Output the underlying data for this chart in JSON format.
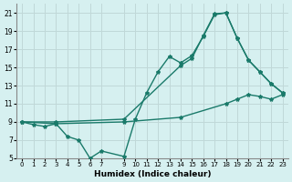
{
  "xlabel": "Humidex (Indice chaleur)",
  "bg_color": "#d6f0f0",
  "grid_color": "#c0d8d8",
  "line_color": "#1a7a6a",
  "xlim": [
    -0.5,
    23.5
  ],
  "ylim": [
    5,
    22
  ],
  "xticks": [
    0,
    1,
    2,
    3,
    4,
    5,
    6,
    7,
    9,
    10,
    11,
    12,
    13,
    14,
    15,
    16,
    17,
    18,
    19,
    20,
    21,
    22,
    23
  ],
  "xticklabels": [
    "0",
    "1",
    "2",
    "3",
    "4",
    "5",
    "6",
    "7",
    "9",
    "10",
    "11",
    "12",
    "13",
    "14",
    "15",
    "16",
    "17",
    "18",
    "19",
    "20",
    "21",
    "22",
    "23"
  ],
  "yticks": [
    5,
    7,
    9,
    11,
    13,
    15,
    17,
    19,
    21
  ],
  "yticklabels": [
    "5",
    "7",
    "9",
    "11",
    "13",
    "15",
    "17",
    "19",
    "21"
  ],
  "line1_x": [
    0,
    1,
    2,
    3,
    4,
    5,
    6,
    7,
    9,
    10,
    11,
    12,
    13,
    14,
    15,
    16,
    17,
    18,
    19,
    20,
    21,
    22,
    23
  ],
  "line1_y": [
    9,
    8.7,
    8.5,
    8.8,
    7.4,
    7.0,
    5.0,
    5.8,
    5.2,
    9.3,
    12.2,
    14.5,
    16.2,
    15.5,
    16.3,
    18.4,
    20.8,
    21.0,
    18.2,
    15.8,
    14.5,
    13.2,
    12.2
  ],
  "line2_x": [
    0,
    3,
    9,
    14,
    15,
    16,
    17,
    18,
    19,
    20,
    21,
    22,
    23
  ],
  "line2_y": [
    9,
    9,
    9.3,
    15.2,
    16.0,
    18.5,
    20.9,
    21.0,
    18.2,
    15.8,
    14.5,
    13.2,
    12.2
  ],
  "line3_x": [
    0,
    3,
    9,
    14,
    18,
    19,
    20,
    21,
    22,
    23
  ],
  "line3_y": [
    9,
    8.8,
    9.0,
    9.5,
    11.0,
    11.5,
    12.0,
    11.8,
    11.5,
    12.0
  ]
}
